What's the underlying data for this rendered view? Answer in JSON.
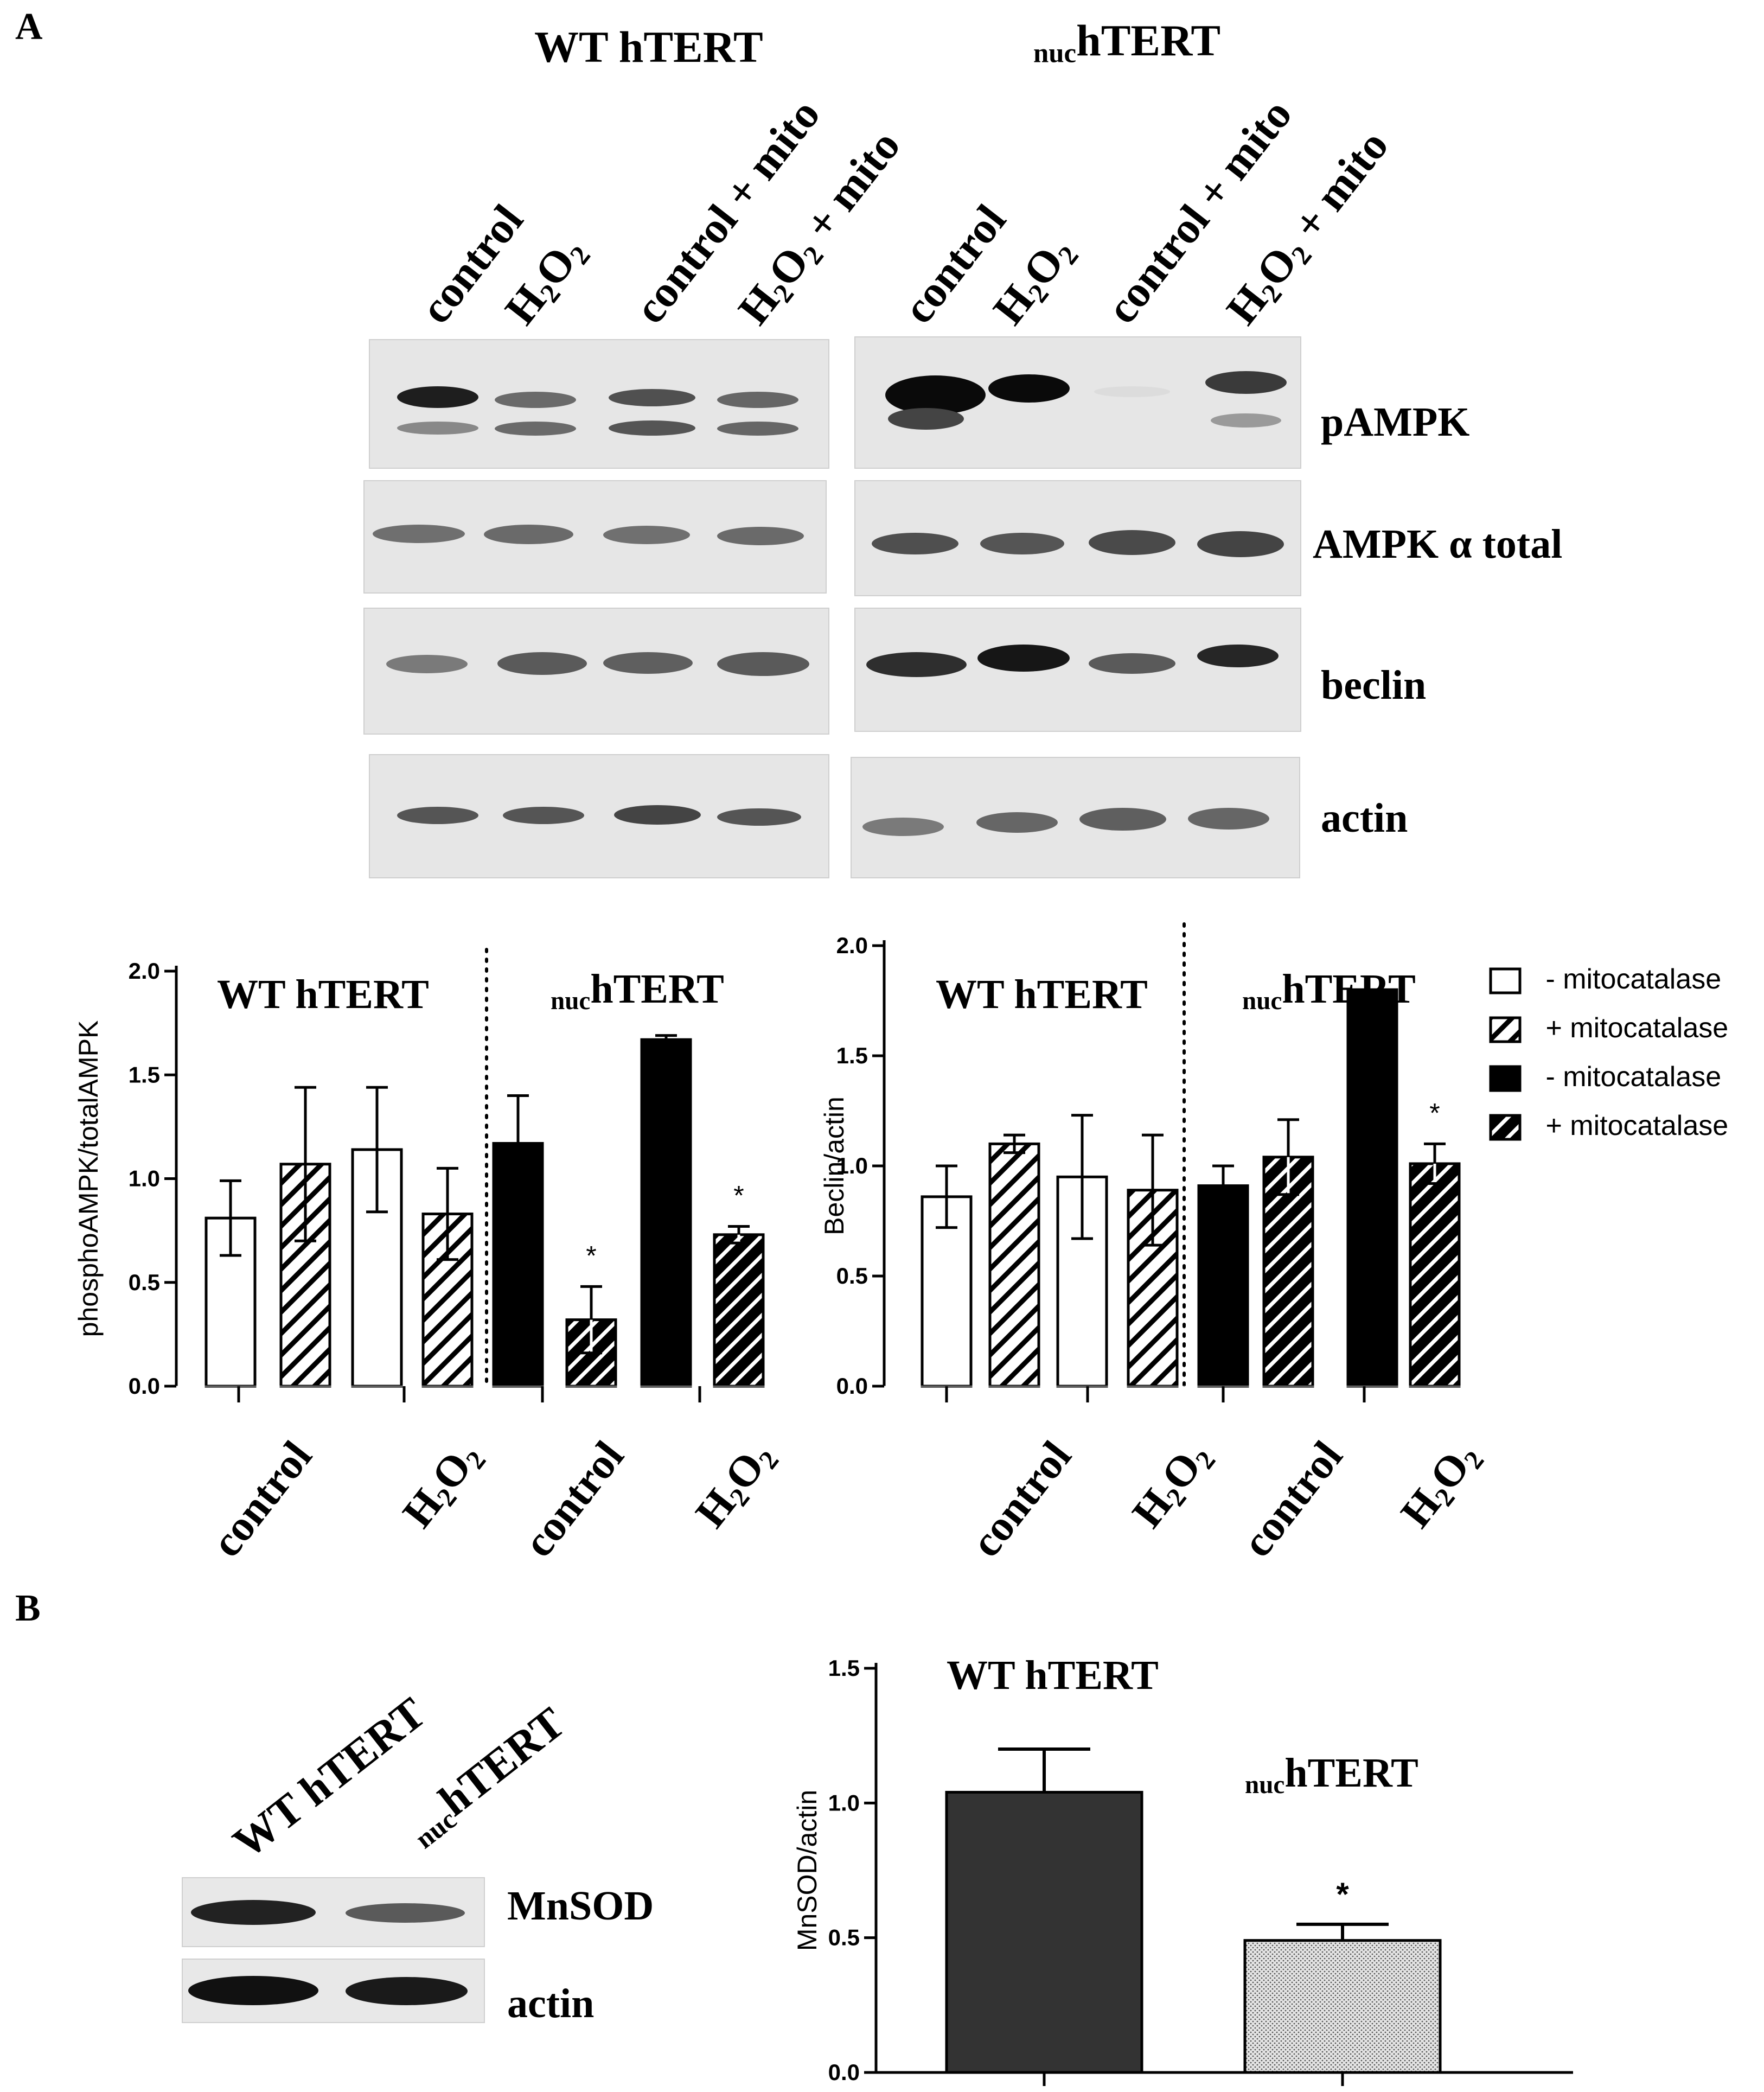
{
  "panel_a": {
    "letter": "A",
    "wt_title": "WT hTERT",
    "nuc_title_sub": "nuc",
    "nuc_title_main": "hTERT",
    "lanes": [
      {
        "main": "control",
        "sub": "",
        "tail": ""
      },
      {
        "main": "H",
        "sub": "2",
        "mid": "O",
        "sub2": "2",
        "tail": ""
      },
      {
        "main": "control + mito",
        "sub": "",
        "tail": ""
      },
      {
        "main": "H",
        "sub": "2",
        "mid": "O",
        "sub2": "2",
        "tail": " + mito"
      }
    ],
    "row_labels": [
      "pAMPK",
      "AMPK α total",
      "beclin",
      "actin"
    ]
  },
  "legend": [
    {
      "label": "- mitocatalase",
      "fill": "white"
    },
    {
      "label": "+ mitocatalase",
      "fill": "hatch-light"
    },
    {
      "label": "- mitocatalase",
      "fill": "black"
    },
    {
      "label": "+ mitocatalase",
      "fill": "hatch-dark"
    }
  ],
  "x_categories": [
    "control",
    "H2O2",
    "control",
    "H2O2"
  ],
  "chart_data": [
    {
      "type": "bar",
      "ylabel": "phosphoAMPK/totalAMPK",
      "ylim": [
        0,
        2.0
      ],
      "yticks": [
        "0.0",
        "0.5",
        "1.0",
        "1.5",
        "2.0"
      ],
      "group_titles": [
        "WT hTERT",
        "hTERT"
      ],
      "categories": [
        "control",
        "H2O2",
        "control",
        "H2O2"
      ],
      "series_order": [
        "- mitocatalase",
        "+ mitocatalase"
      ],
      "bars": [
        {
          "group": "WT hTERT",
          "category": "control",
          "series": "- mitocatalase",
          "value": 0.81,
          "err": 0.18,
          "fill": "white",
          "star": false
        },
        {
          "group": "WT hTERT",
          "category": "control",
          "series": "+ mitocatalase",
          "value": 1.07,
          "err": 0.37,
          "fill": "hatch-light",
          "star": false
        },
        {
          "group": "WT hTERT",
          "category": "H2O2",
          "series": "- mitocatalase",
          "value": 1.14,
          "err": 0.3,
          "fill": "white",
          "star": false
        },
        {
          "group": "WT hTERT",
          "category": "H2O2",
          "series": "+ mitocatalase",
          "value": 0.83,
          "err": 0.22,
          "fill": "hatch-light",
          "star": false
        },
        {
          "group": "nucTERT",
          "category": "control",
          "series": "- mitocatalase",
          "value": 1.17,
          "err": 0.23,
          "fill": "black",
          "star": false
        },
        {
          "group": "nucTERT",
          "category": "control",
          "series": "+ mitocatalase",
          "value": 0.32,
          "err": 0.16,
          "fill": "hatch-dark",
          "star": true
        },
        {
          "group": "nucTERT",
          "category": "H2O2",
          "series": "- mitocatalase",
          "value": 1.67,
          "err": 0.02,
          "fill": "black",
          "star": false
        },
        {
          "group": "nucTERT",
          "category": "H2O2",
          "series": "+ mitocatalase",
          "value": 0.73,
          "err": 0.04,
          "fill": "hatch-dark",
          "star": true
        }
      ]
    },
    {
      "type": "bar",
      "ylabel": "Beclin/actin",
      "ylim": [
        0,
        2.0
      ],
      "yticks": [
        "0.0",
        "0.5",
        "1.0",
        "1.5",
        "2.0"
      ],
      "group_titles": [
        "WT hTERT",
        "hTERT"
      ],
      "categories": [
        "control",
        "H2O2",
        "control",
        "H2O2"
      ],
      "series_order": [
        "- mitocatalase",
        "+ mitocatalase"
      ],
      "bars": [
        {
          "group": "WT hTERT",
          "category": "control",
          "series": "- mitocatalase",
          "value": 0.86,
          "err": 0.14,
          "fill": "white",
          "star": false
        },
        {
          "group": "WT hTERT",
          "category": "control",
          "series": "+ mitocatalase",
          "value": 1.1,
          "err": 0.04,
          "fill": "hatch-light",
          "star": false
        },
        {
          "group": "WT hTERT",
          "category": "H2O2",
          "series": "- mitocatalase",
          "value": 0.95,
          "err": 0.28,
          "fill": "white",
          "star": false
        },
        {
          "group": "WT hTERT",
          "category": "H2O2",
          "series": "+ mitocatalase",
          "value": 0.89,
          "err": 0.25,
          "fill": "hatch-light",
          "star": false
        },
        {
          "group": "nucTERT",
          "category": "control",
          "series": "- mitocatalase",
          "value": 0.91,
          "err": 0.09,
          "fill": "black",
          "star": false
        },
        {
          "group": "nucTERT",
          "category": "control",
          "series": "+ mitocatalase",
          "value": 1.04,
          "err": 0.17,
          "fill": "hatch-dark",
          "star": false
        },
        {
          "group": "nucTERT",
          "category": "H2O2",
          "series": "- mitocatalase",
          "value": 1.8,
          "err": 0.0,
          "fill": "black",
          "star": false
        },
        {
          "group": "nucTERT",
          "category": "H2O2",
          "series": "+ mitocatalase",
          "value": 1.01,
          "err": 0.09,
          "fill": "hatch-dark",
          "star": true
        }
      ]
    },
    {
      "type": "bar",
      "ylabel": "MnSOD/actin",
      "ylim": [
        0,
        1.5
      ],
      "yticks": [
        "0.0",
        "0.5",
        "1.0",
        "1.5"
      ],
      "series": [
        {
          "name": "WT hTERT",
          "value": 1.04,
          "err": 0.16,
          "fill": "dark",
          "star": false
        },
        {
          "name": "hTERT",
          "value": 0.49,
          "err": 0.06,
          "fill": "dotted",
          "star": true
        }
      ]
    }
  ],
  "panel_b": {
    "letter": "B",
    "lane_wt": "WT hTERT",
    "lane_nuc_sub": "nuc",
    "lane_nuc_main": "hTERT",
    "row_labels": [
      "MnSOD",
      "actin"
    ],
    "chart_wt_title": "WT hTERT",
    "chart_nuc_sub": "nuc",
    "chart_nuc_main": "hTERT"
  },
  "significance_mark": "*"
}
